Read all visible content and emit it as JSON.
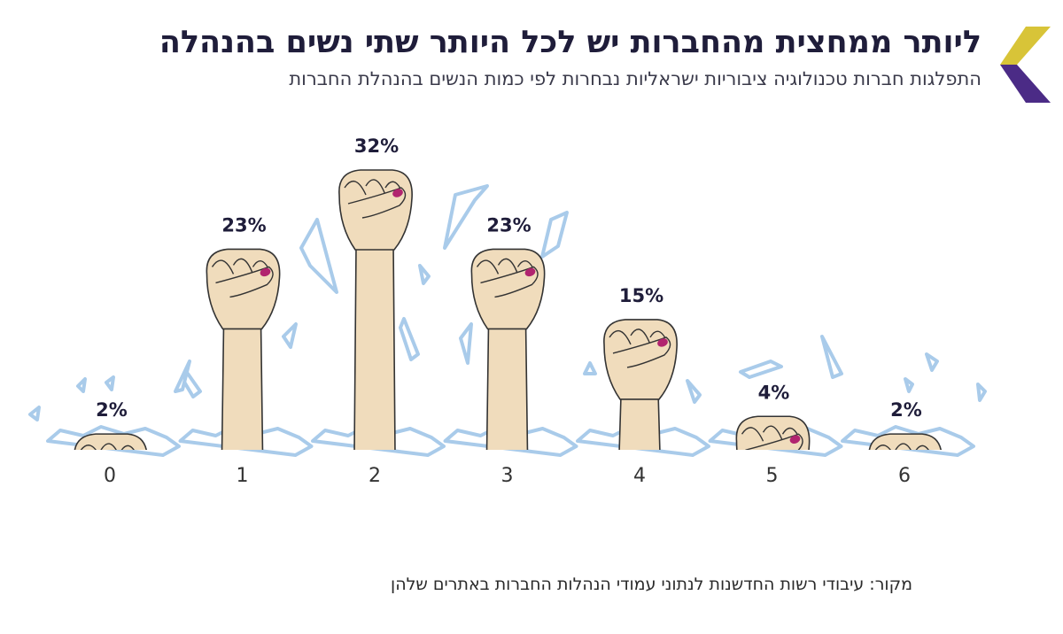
{
  "title": "ליותר ממחצית מהחברות יש לכל היותר שתי נשים בהנהלה",
  "subtitle": "התפלגות חברות טכנולוגיה ציבוריות ישראליות נבחרות לפי כמות הנשים בהנהלת החברות",
  "source": "מקור: עיבודי רשות החדשנות לנתוני עמודי הנהלות החברות באתרים שלהן",
  "colors": {
    "arm": "#f0dcbc",
    "outline": "#333333",
    "nail": "#b1246f",
    "ice": "#a9cbea",
    "logo_gold": "#d8c438",
    "logo_purple": "#4b2b86"
  },
  "icons": {
    "bar_mark": "raised-fist-icon",
    "ground": "broken-glass-icon",
    "logo": "chevron-logo-icon"
  },
  "chart_data": {
    "type": "bar",
    "categories": [
      "0",
      "1",
      "2",
      "3",
      "4",
      "5",
      "6"
    ],
    "values": [
      2,
      23,
      32,
      23,
      15,
      4,
      2
    ],
    "value_labels": [
      "2%",
      "23%",
      "32%",
      "23%",
      "15%",
      "4%",
      "2%"
    ],
    "ylim": [
      0,
      32
    ],
    "grid": false
  }
}
